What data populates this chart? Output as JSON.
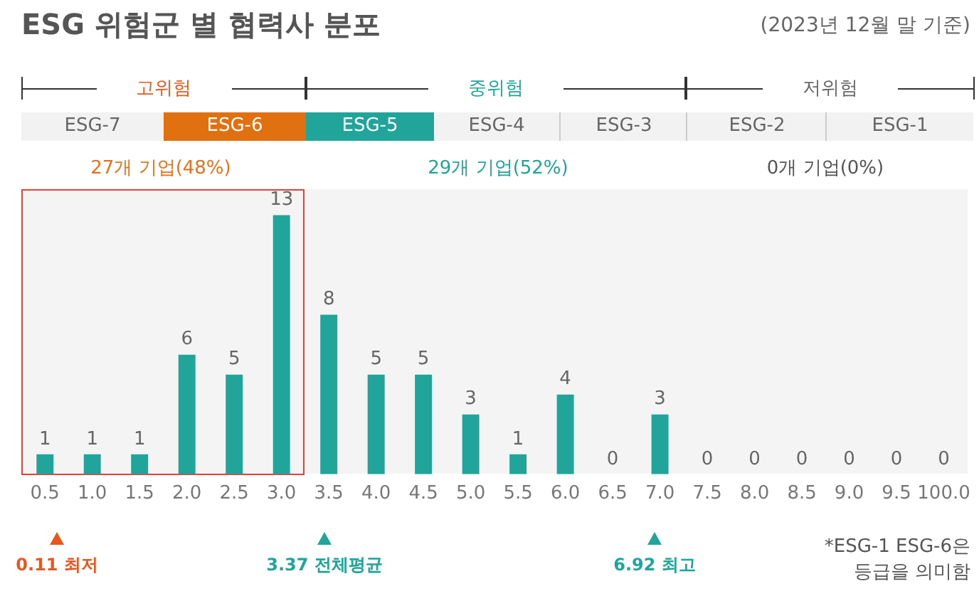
{
  "chart_data": {
    "type": "bar",
    "title": "ESG 위험군 별 협력사 분포",
    "subtitle": "(2023년 12월 말 기준)",
    "categories": [
      "0.5",
      "1.0",
      "1.5",
      "2.0",
      "2.5",
      "3.0",
      "3.5",
      "4.0",
      "4.5",
      "5.0",
      "5.5",
      "6.0",
      "6.5",
      "7.0",
      "7.5",
      "8.0",
      "8.5",
      "9.0",
      "9.5",
      "100.0"
    ],
    "values": [
      1,
      1,
      1,
      6,
      5,
      13,
      8,
      5,
      5,
      3,
      1,
      4,
      0,
      3,
      0,
      0,
      0,
      0,
      0,
      0
    ],
    "color": "#21a49a",
    "data_labels": true,
    "tick_labels": "x",
    "annotations": [
      "고위험",
      "중위험",
      "저위험",
      "ESG-7",
      "ESG-6",
      "ESG-5",
      "ESG-4",
      "ESG-3",
      "ESG-2",
      "ESG-1",
      "27개 기업(48%)",
      "29개 기업(52%)",
      "0개 기업(0%)",
      "*ESG-1 ESG-6은 등급을 의미함",
      "0.11 최저",
      "3.37 전체평균",
      "6.92 최고"
    ]
  }
}
